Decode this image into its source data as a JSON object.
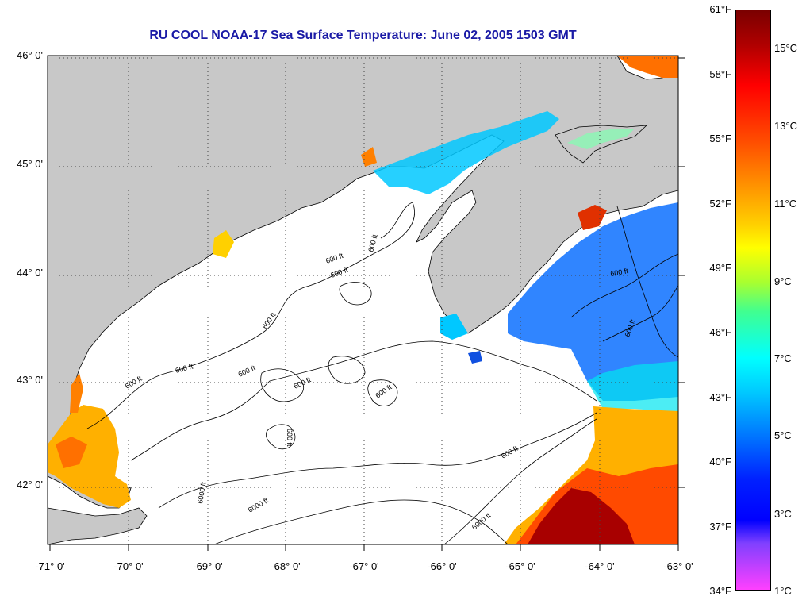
{
  "title": "RU COOL  NOAA-17  Sea Surface Temperature:  June 02, 2005 1503 GMT",
  "colors": {
    "land": "#c8c8c8",
    "cloud": "#ffffff",
    "title": "#1a1aa6"
  },
  "axes": {
    "latitudes": [
      "46° 0'",
      "45° 0'",
      "44° 0'",
      "43° 0'",
      "42° 0'"
    ],
    "longitudes": [
      "-71° 0'",
      "-70° 0'",
      "-69° 0'",
      "-68° 0'",
      "-67° 0'",
      "-66° 0'",
      "-65° 0'",
      "-64° 0'",
      "-63° 0'"
    ]
  },
  "contour_labels": [
    "600 ft",
    "600 ft",
    "600 ft",
    "600 ft",
    "600 ft",
    "600 ft",
    "600 ft",
    "600 ft",
    "600 ft",
    "600 ft",
    "600 ft",
    "600 ft",
    "600 ft",
    "6000 ft",
    "6000 ft",
    "6000 ft"
  ],
  "colorbar": {
    "fahrenheit": [
      "61°F",
      "58°F",
      "55°F",
      "52°F",
      "49°F",
      "46°F",
      "43°F",
      "40°F",
      "37°F",
      "34°F"
    ],
    "celsius": [
      "15°C",
      "13°C",
      "11°C",
      "9°C",
      "7°C",
      "5°C",
      "3°C",
      "1°C"
    ]
  }
}
